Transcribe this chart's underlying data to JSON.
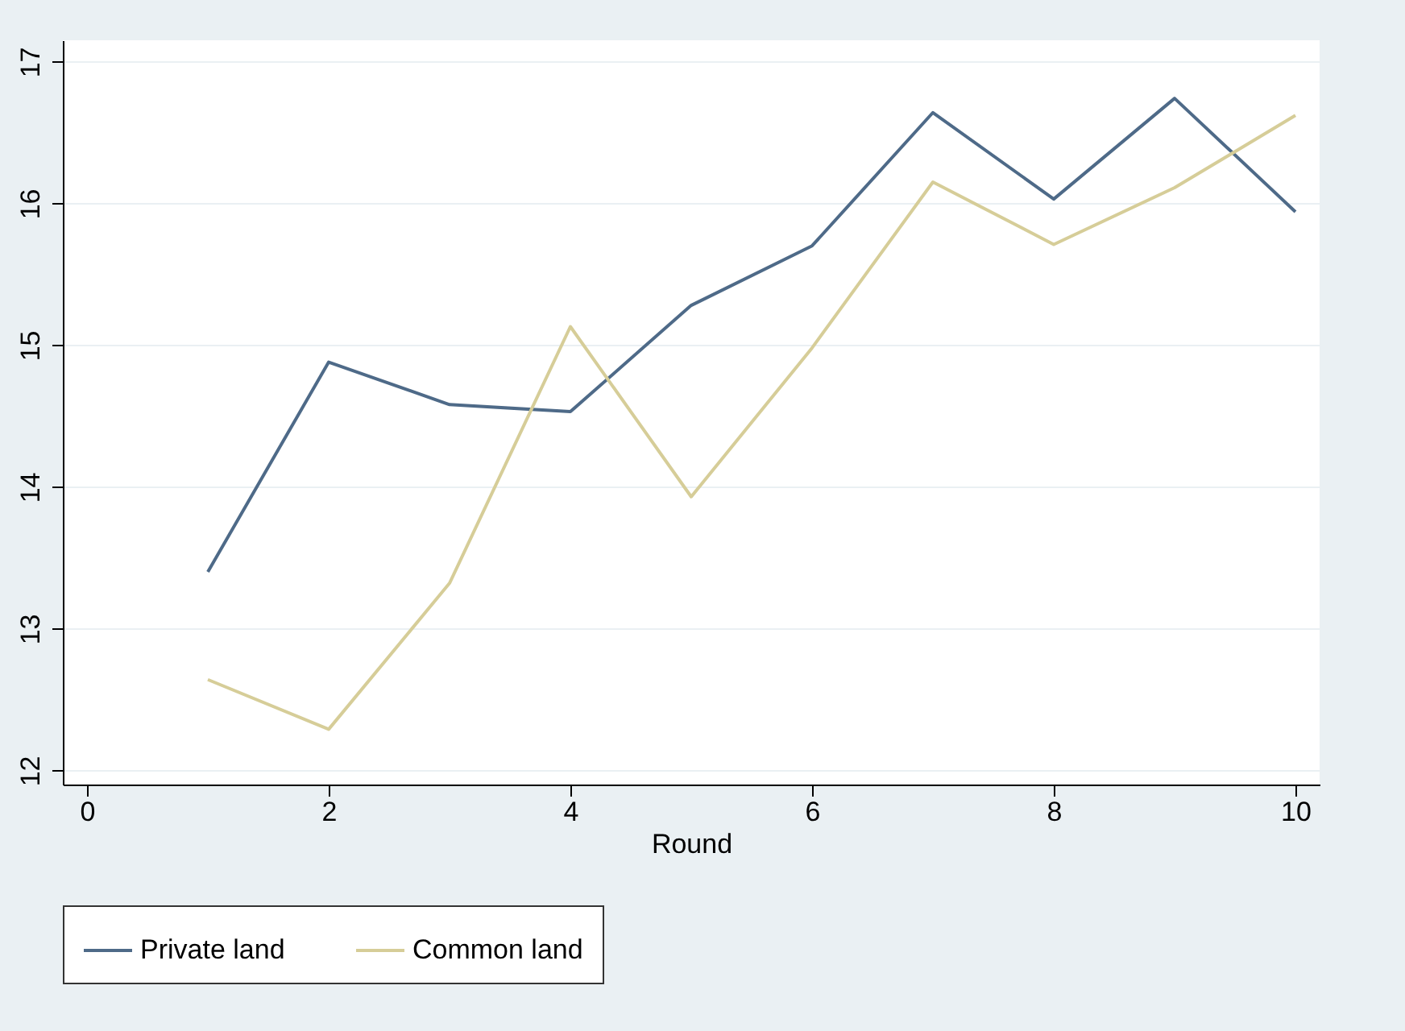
{
  "chart_data": {
    "type": "line",
    "xlabel": "Round",
    "x": [
      1,
      2,
      3,
      4,
      5,
      6,
      7,
      8,
      9,
      10
    ],
    "series": [
      {
        "name": "Private land",
        "color": "#4e6a88",
        "values": [
          13.4,
          14.88,
          14.58,
          14.53,
          15.28,
          15.7,
          16.64,
          16.03,
          16.74,
          15.94
        ]
      },
      {
        "name": "Common land",
        "color": "#d6cd98",
        "values": [
          12.64,
          12.29,
          13.32,
          15.13,
          13.93,
          14.98,
          16.15,
          15.71,
          16.11,
          16.62
        ]
      }
    ],
    "xlim": [
      -0.2,
      10.2
    ],
    "xticks": [
      0,
      2,
      4,
      6,
      8,
      10
    ],
    "ylim": [
      11.9,
      17.15
    ],
    "yticks": [
      12,
      13,
      14,
      15,
      16,
      17
    ],
    "grid": "y",
    "legend": "bottom",
    "marker": "none",
    "line_style": "solid"
  }
}
